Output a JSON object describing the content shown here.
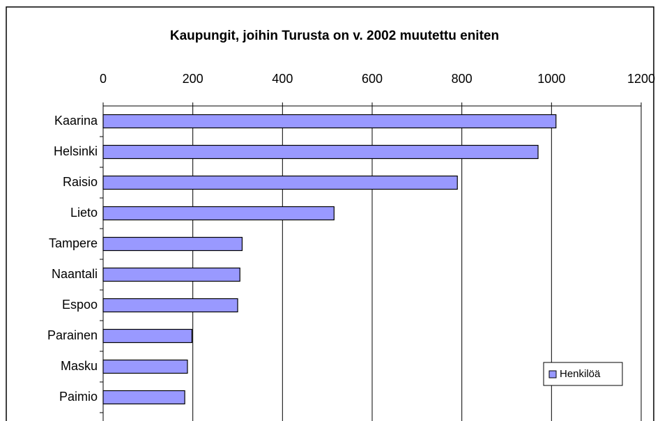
{
  "chart_data": {
    "type": "hbar",
    "title": "Kaupungit, joihin Turusta on v. 2002 muutettu eniten",
    "categories": [
      "Kaarina",
      "Helsinki",
      "Raisio",
      "Lieto",
      "Tampere",
      "Naantali",
      "Espoo",
      "Parainen",
      "Masku",
      "Paimio"
    ],
    "series": [
      {
        "name": "Henkilöä",
        "color": "#9999ff",
        "values": [
          1010,
          970,
          790,
          515,
          310,
          305,
          300,
          198,
          188,
          182
        ]
      }
    ],
    "xlim": [
      0,
      1200
    ],
    "xticks": [
      0,
      200,
      400,
      600,
      800,
      1000,
      1200
    ],
    "grid": true,
    "legend": "lower right"
  }
}
